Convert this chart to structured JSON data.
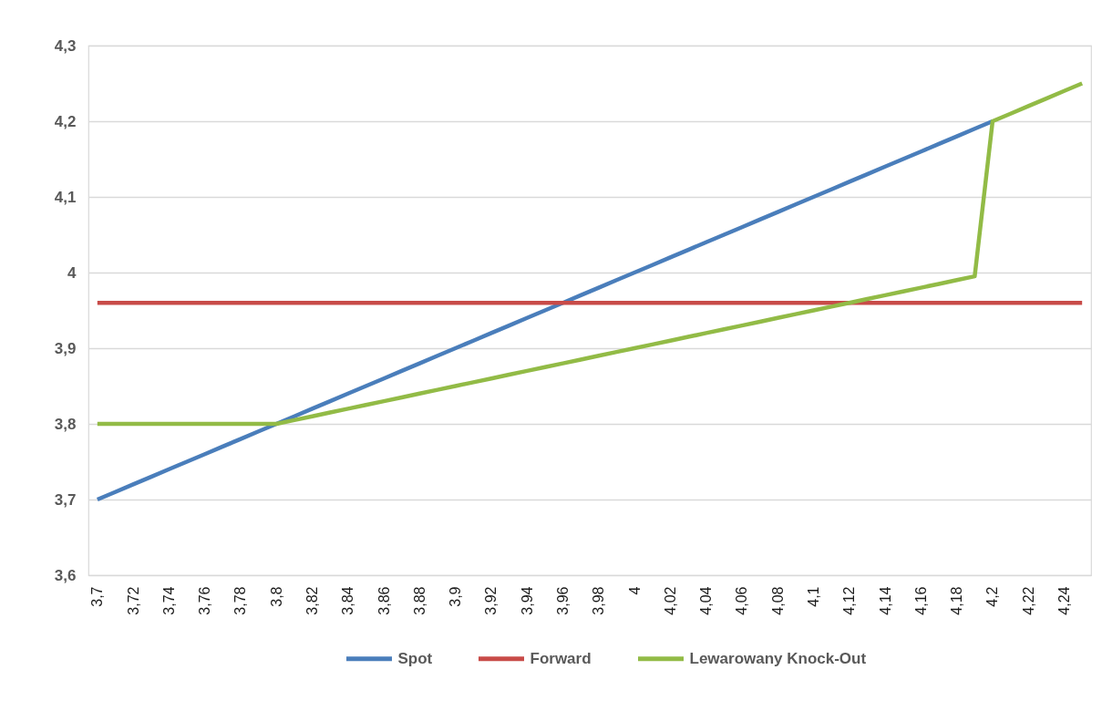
{
  "chart_data": {
    "type": "line",
    "categories": [
      "3,7",
      null,
      "3,72",
      null,
      "3,74",
      null,
      "3,76",
      null,
      "3,78",
      null,
      "3,8",
      null,
      "3,82",
      null,
      "3,84",
      null,
      "3,86",
      null,
      "3,88",
      null,
      "3,9",
      null,
      "3,92",
      null,
      "3,94",
      null,
      "3,96",
      null,
      "3,98",
      null,
      "4",
      null,
      "4,02",
      null,
      "4,04",
      null,
      "4,06",
      null,
      "4,08",
      null,
      "4,1",
      null,
      "4,12",
      null,
      "4,14",
      null,
      "4,16",
      null,
      "4,18",
      null,
      "4,2",
      null,
      "4,22",
      null,
      "4,24",
      null
    ],
    "series": [
      {
        "name": "Spot",
        "color": "#4a7ebb",
        "values": [
          3.7,
          3.71,
          3.72,
          3.73,
          3.74,
          3.75,
          3.76,
          3.77,
          3.78,
          3.79,
          3.8,
          3.81,
          3.82,
          3.83,
          3.84,
          3.85,
          3.86,
          3.87,
          3.88,
          3.89,
          3.9,
          3.91,
          3.92,
          3.93,
          3.94,
          3.95,
          3.96,
          3.97,
          3.98,
          3.99,
          4.0,
          4.01,
          4.02,
          4.03,
          4.04,
          4.05,
          4.06,
          4.07,
          4.08,
          4.09,
          4.1,
          4.11,
          4.12,
          4.13,
          4.14,
          4.15,
          4.16,
          4.17,
          4.18,
          4.19,
          4.2,
          null,
          null,
          null,
          null,
          null
        ]
      },
      {
        "name": "Forward",
        "color": "#c84b48",
        "values": [
          3.96,
          3.96,
          3.96,
          3.96,
          3.96,
          3.96,
          3.96,
          3.96,
          3.96,
          3.96,
          3.96,
          3.96,
          3.96,
          3.96,
          3.96,
          3.96,
          3.96,
          3.96,
          3.96,
          3.96,
          3.96,
          3.96,
          3.96,
          3.96,
          3.96,
          3.96,
          3.96,
          3.96,
          3.96,
          3.96,
          3.96,
          3.96,
          3.96,
          3.96,
          3.96,
          3.96,
          3.96,
          3.96,
          3.96,
          3.96,
          3.96,
          3.96,
          3.96,
          3.96,
          3.96,
          3.96,
          3.96,
          3.96,
          3.96,
          3.96,
          3.96,
          3.96,
          3.96,
          3.96,
          3.96,
          3.96
        ]
      },
      {
        "name": "Lewarowany Knock-Out",
        "color": "#92bb46",
        "values": [
          3.8,
          3.8,
          3.8,
          3.8,
          3.8,
          3.8,
          3.8,
          3.8,
          3.8,
          3.8,
          3.8,
          3.805,
          3.81,
          3.815,
          3.82,
          3.825,
          3.83,
          3.835,
          3.84,
          3.845,
          3.85,
          3.855,
          3.86,
          3.865,
          3.87,
          3.875,
          3.88,
          3.885,
          3.89,
          3.895,
          3.9,
          3.905,
          3.91,
          3.915,
          3.92,
          3.925,
          3.93,
          3.935,
          3.94,
          3.945,
          3.95,
          3.955,
          3.96,
          3.965,
          3.97,
          3.975,
          3.98,
          3.985,
          3.99,
          3.995,
          4.2,
          4.21,
          4.22,
          4.23,
          4.24,
          4.25
        ]
      }
    ],
    "ylim": [
      3.6,
      4.3
    ],
    "yticks": [
      {
        "value": 3.6,
        "label": "3,6"
      },
      {
        "value": 3.7,
        "label": "3,7"
      },
      {
        "value": 3.8,
        "label": "3,8"
      },
      {
        "value": 3.9,
        "label": "3,9"
      },
      4,
      {
        "value": 4.1,
        "label": "4,1"
      },
      {
        "value": 4.2,
        "label": "4,2"
      },
      {
        "value": 4.3,
        "label": "4,3"
      }
    ],
    "grid": "y",
    "legend": "bottom"
  }
}
